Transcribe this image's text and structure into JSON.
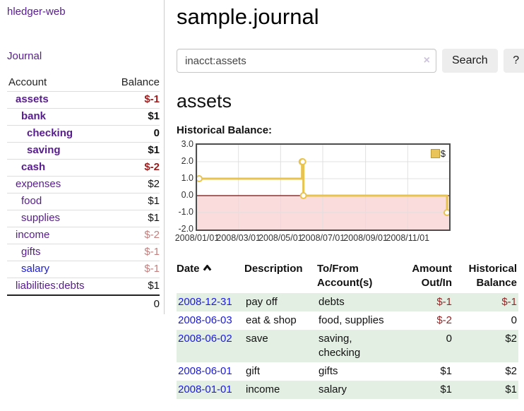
{
  "sidebar": {
    "brand": "hledger-web",
    "nav_journal": "Journal",
    "accounts_header": {
      "account": "Account",
      "balance": "Balance"
    },
    "accounts": [
      {
        "name": "assets",
        "indent": 1,
        "bold": true,
        "balance": "$-1",
        "neg": "strong",
        "link_color": "purple"
      },
      {
        "name": "bank",
        "indent": 2,
        "bold": true,
        "balance": "$1",
        "neg": "none",
        "link_color": "purple"
      },
      {
        "name": "checking",
        "indent": 3,
        "bold": true,
        "balance": "0",
        "neg": "none",
        "link_color": "purple"
      },
      {
        "name": "saving",
        "indent": 3,
        "bold": true,
        "balance": "$1",
        "neg": "none",
        "link_color": "purple"
      },
      {
        "name": "cash",
        "indent": 2,
        "bold": true,
        "balance": "$-2",
        "neg": "strong",
        "link_color": "purple"
      },
      {
        "name": "expenses",
        "indent": 1,
        "bold": false,
        "balance": "$2",
        "neg": "none",
        "link_color": "purple"
      },
      {
        "name": "food",
        "indent": 2,
        "bold": false,
        "balance": "$1",
        "neg": "none",
        "link_color": "purple"
      },
      {
        "name": "supplies",
        "indent": 2,
        "bold": false,
        "balance": "$1",
        "neg": "none",
        "link_color": "purple"
      },
      {
        "name": "income",
        "indent": 1,
        "bold": false,
        "balance": "$-2",
        "neg": "soft",
        "link_color": "purple"
      },
      {
        "name": "gifts",
        "indent": 2,
        "bold": false,
        "balance": "$-1",
        "neg": "soft",
        "link_color": "purple"
      },
      {
        "name": "salary",
        "indent": 2,
        "bold": false,
        "balance": "$-1",
        "neg": "soft",
        "link_color": "blue"
      },
      {
        "name": "liabilities:debts",
        "indent": 1,
        "bold": false,
        "balance": "$1",
        "neg": "none",
        "link_color": "purple"
      }
    ],
    "total": "0"
  },
  "header": {
    "title": "sample.journal"
  },
  "search": {
    "value": "inacct:assets",
    "clear_icon": "×",
    "button_label": "Search",
    "help_label": "?"
  },
  "account_page": {
    "heading": "assets",
    "chart_heading": "Historical Balance:"
  },
  "chart_data": {
    "type": "line",
    "subtype": "step-after",
    "title": "Historical Balance:",
    "series": [
      {
        "name": "$",
        "x": [
          "2008-01-01",
          "2008-06-01",
          "2008-06-02",
          "2008-06-03",
          "2008-12-31"
        ],
        "y": [
          1,
          2,
          2,
          0,
          -1
        ]
      }
    ],
    "x_ticks": [
      "2008/01/01",
      "2008/03/01",
      "2008/05/01",
      "2008/07/01",
      "2008/09/01",
      "2008/11/01"
    ],
    "y_ticks": [
      3.0,
      2.0,
      1.0,
      0.0,
      -1.0,
      -2.0
    ],
    "xlim": [
      "2008-01-01",
      "2008-12-31"
    ],
    "ylim": [
      -2,
      3
    ],
    "legend": "$",
    "legend_position": "top-right",
    "grid": true,
    "colors": {
      "line": "#e8c34f",
      "marker_fill": "#ffffff",
      "negative_fill": "#fadcdc",
      "zero_line": "#7a0b0b",
      "grid": "#e0e0e0"
    }
  },
  "register": {
    "columns": [
      "Date",
      "Description",
      "To/From Account(s)",
      "Amount Out/In",
      "Historical Balance"
    ],
    "sort": {
      "column": "Date",
      "direction": "ascending"
    },
    "rows": [
      {
        "date": "2008-12-31",
        "description": "pay off",
        "accounts": "debts",
        "amount": "$-1",
        "amount_neg": true,
        "balance": "$-1",
        "balance_neg": true
      },
      {
        "date": "2008-06-03",
        "description": "eat & shop",
        "accounts": "food, supplies",
        "amount": "$-2",
        "amount_neg": true,
        "balance": "0",
        "balance_neg": false
      },
      {
        "date": "2008-06-02",
        "description": "save",
        "accounts": "saving, checking",
        "amount": "0",
        "amount_neg": false,
        "balance": "$2",
        "balance_neg": false
      },
      {
        "date": "2008-06-01",
        "description": "gift",
        "accounts": "gifts",
        "amount": "$1",
        "amount_neg": false,
        "balance": "$2",
        "balance_neg": false
      },
      {
        "date": "2008-01-01",
        "description": "income",
        "accounts": "salary",
        "amount": "$1",
        "amount_neg": false,
        "balance": "$1",
        "balance_neg": false
      }
    ]
  }
}
